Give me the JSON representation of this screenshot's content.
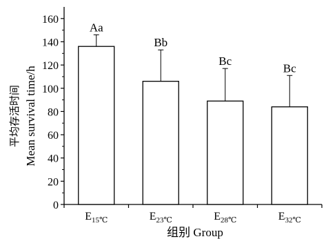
{
  "chart_data": {
    "type": "bar",
    "categories": [
      {
        "base": "E",
        "sub": "15℃"
      },
      {
        "base": "E",
        "sub": "23℃"
      },
      {
        "base": "E",
        "sub": "28℃"
      },
      {
        "base": "E",
        "sub": "32℃"
      }
    ],
    "values": [
      136,
      106,
      89,
      84
    ],
    "error": [
      10,
      27,
      28,
      27
    ],
    "significance": [
      "Aa",
      "Bb",
      "Bc",
      "Bc"
    ],
    "ylabel_cn": "平均存活时间",
    "ylabel": "Mean survival time/h",
    "xlabel": "组别 Group",
    "ylim": [
      0,
      170
    ],
    "yticks": [
      0,
      20,
      40,
      60,
      80,
      100,
      120,
      140,
      160
    ],
    "grid": false,
    "bar_fill": "#ffffff",
    "bar_stroke": "#000000"
  }
}
